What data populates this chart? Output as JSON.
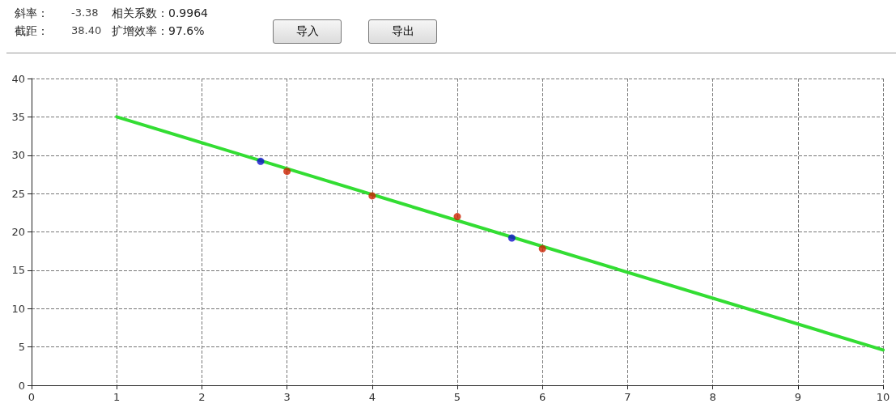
{
  "chart_data": {
    "type": "scatter",
    "annotations": [
      "斜率：",
      "-3.38",
      "相关系数：0.9964",
      "截距：",
      "38.40",
      "扩增效率：97.6%",
      "导入",
      "导出"
    ],
    "series": [
      {
        "type": "line",
        "color": "#33dd33",
        "x": [
          1,
          10
        ],
        "values": [
          35.0,
          4.6
        ],
        "marker": "none",
        "line_style": "solid"
      },
      {
        "color": "#cc2200",
        "x": [
          3,
          4,
          5,
          6
        ],
        "values": [
          27.9,
          24.7,
          22.0,
          17.8
        ]
      },
      {
        "color": "#1010cc",
        "x": [
          2.69,
          5.64
        ],
        "values": [
          29.2,
          19.2
        ]
      }
    ],
    "xlim": [
      0,
      10
    ],
    "xticks": [
      0,
      1,
      2,
      3,
      4,
      5,
      6,
      7,
      8,
      9,
      10
    ],
    "ylim": [
      0,
      40
    ],
    "yticks": [
      0,
      5,
      10,
      15,
      20,
      25,
      30,
      35,
      40
    ],
    "grid": true,
    "marker": "circle"
  }
}
